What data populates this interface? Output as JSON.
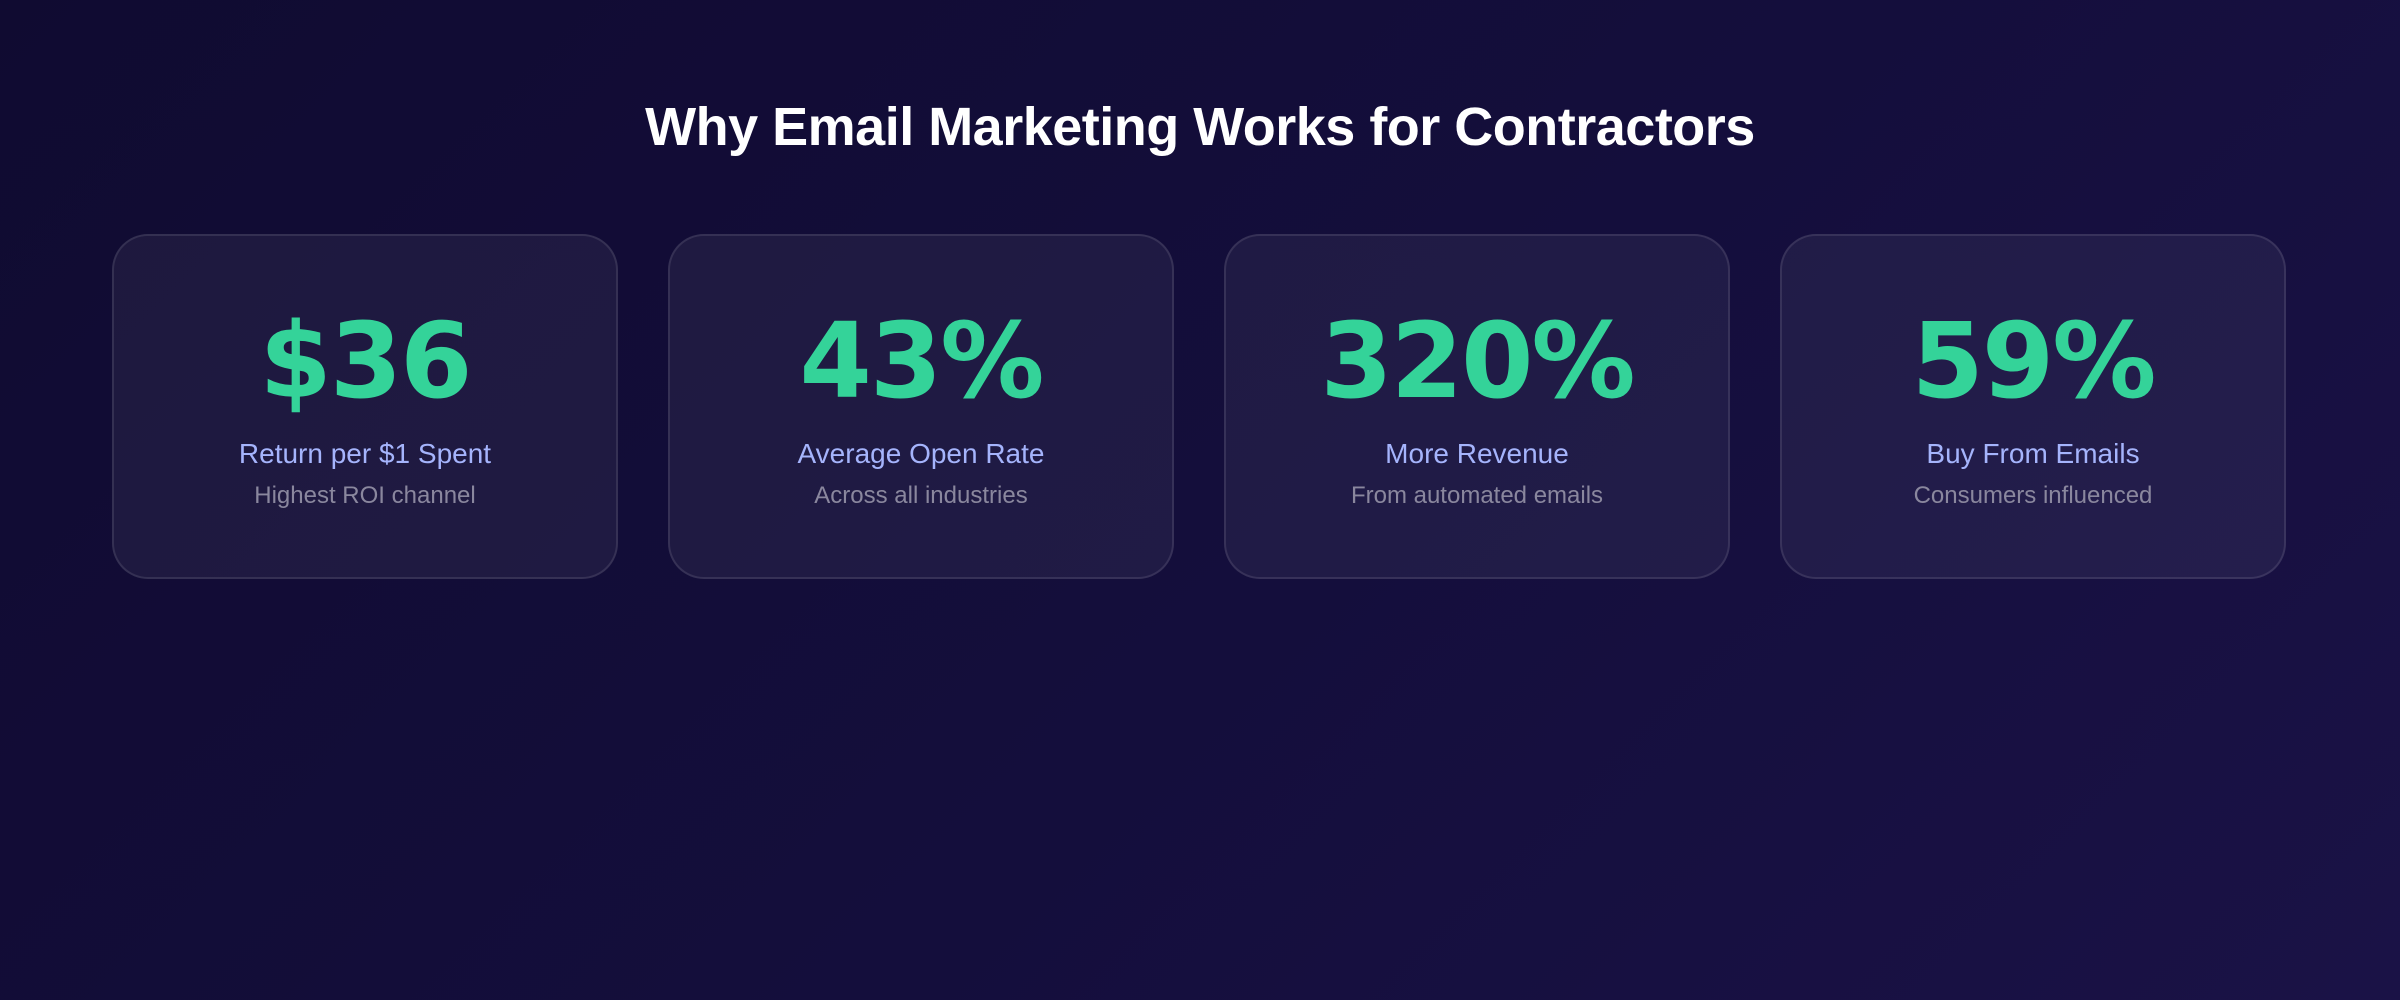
{
  "header": {
    "title": "Why Email Marketing Works for Contractors"
  },
  "cards": [
    {
      "stat": "$36",
      "label": "Return per $1 Spent",
      "caption": "Highest ROI channel"
    },
    {
      "stat": "43%",
      "label": "Average Open Rate",
      "caption": "Across all industries"
    },
    {
      "stat": "320%",
      "label": "More Revenue",
      "caption": "From automated emails"
    },
    {
      "stat": "59%",
      "label": "Buy From Emails",
      "caption": "Consumers influenced"
    }
  ]
}
